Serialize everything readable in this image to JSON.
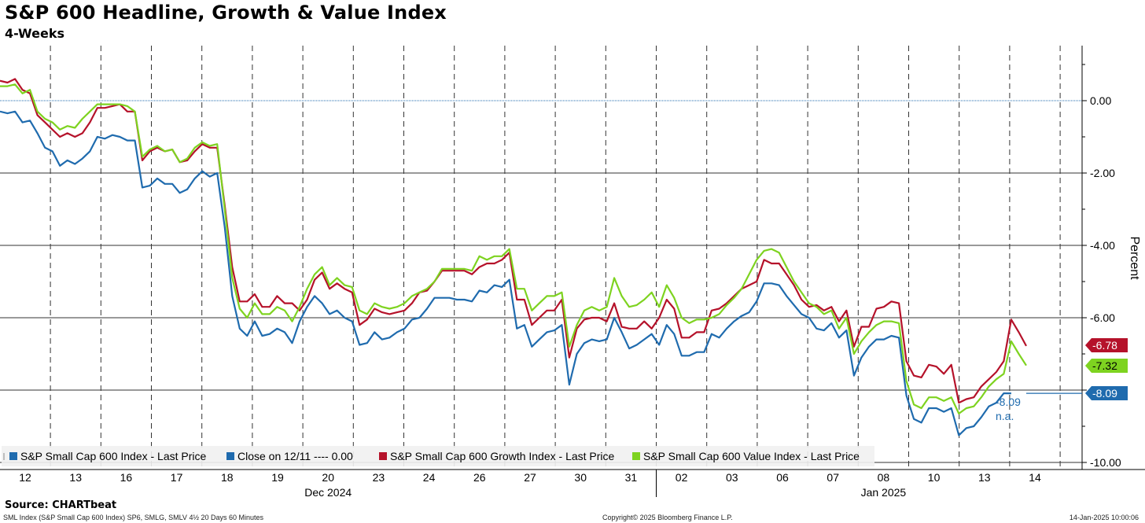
{
  "header": {
    "title": "S&P 600 Headline, Growth & Value Index",
    "subtitle": "4-Weeks"
  },
  "footer": {
    "source": "Source: CHARTbeat",
    "left_note": "SML Index (S&P Small Cap 600 Index) SP6, SMLG, SMLV 4½ 20 Days 60 Minutes",
    "copyright": "Copyright© 2025 Bloomberg Finance L.P.",
    "timestamp": "14-Jan-2025 10:00:06"
  },
  "colors": {
    "headline": "#1f6bae",
    "growth": "#b5122a",
    "value": "#7ed320",
    "reference": "#1f6bae"
  },
  "chart_data": {
    "type": "line",
    "ylabel": "Percent",
    "ylim": [
      -10.3,
      1.5
    ],
    "yticks": [
      0,
      -2,
      -4,
      -6,
      -8,
      -10
    ],
    "ytick_labels": [
      "0.00",
      "-2.00",
      "-4.00",
      "-6.00",
      "-8.00",
      "-10.00"
    ],
    "grid": true,
    "legend_position": "bottom-left",
    "x_day_labels": [
      "12",
      "13",
      "16",
      "17",
      "18",
      "19",
      "20",
      "23",
      "24",
      "26",
      "27",
      "30",
      "31",
      "02",
      "03",
      "06",
      "07",
      "08",
      "10",
      "13",
      "14"
    ],
    "x_month_labels": [
      {
        "label": "Dec 2024",
        "day_index": 6
      },
      {
        "label": "Jan 2025",
        "day_index": 17
      }
    ],
    "reference_line": {
      "name": "Close on 12/11 ---- 0.00",
      "value": 0.0
    },
    "series": [
      {
        "key": "growth",
        "name": "S&P Small Cap 600 Growth Index - Last Price",
        "last_value": -6.78,
        "last_label": "-6.78",
        "values": [
          0.55,
          0.5,
          0.6,
          0.3,
          0.2,
          -0.4,
          -0.6,
          -0.8,
          -1.0,
          -0.9,
          -1.0,
          -0.9,
          -0.6,
          -0.2,
          -0.2,
          -0.15,
          -0.1,
          -0.3,
          -0.3,
          -1.65,
          -1.4,
          -1.3,
          -1.4,
          -1.35,
          -1.7,
          -1.65,
          -1.4,
          -1.2,
          -1.3,
          -1.3,
          -2.9,
          -4.6,
          -5.55,
          -5.55,
          -5.35,
          -5.7,
          -5.7,
          -5.4,
          -5.6,
          -5.6,
          -5.8,
          -5.5,
          -4.95,
          -4.75,
          -5.2,
          -5.05,
          -5.2,
          -5.3,
          -6.2,
          -6.05,
          -5.75,
          -5.85,
          -5.9,
          -5.85,
          -5.8,
          -5.6,
          -5.3,
          -5.25,
          -5.0,
          -4.7,
          -4.7,
          -4.7,
          -4.7,
          -4.8,
          -4.6,
          -4.5,
          -4.5,
          -4.4,
          -4.2,
          -5.5,
          -5.5,
          -6.2,
          -6.0,
          -5.8,
          -5.8,
          -5.5,
          -7.1,
          -6.3,
          -6.05,
          -6.0,
          -6.0,
          -6.1,
          -5.6,
          -6.25,
          -6.3,
          -6.3,
          -6.1,
          -6.3,
          -6.0,
          -5.5,
          -5.75,
          -6.55,
          -6.55,
          -6.4,
          -6.4,
          -5.8,
          -5.75,
          -5.6,
          -5.4,
          -5.2,
          -5.1,
          -5.0,
          -4.4,
          -4.5,
          -4.5,
          -4.8,
          -5.1,
          -5.5,
          -5.7,
          -5.65,
          -5.8,
          -5.7,
          -6.1,
          -5.8,
          -6.8,
          -6.25,
          -6.25,
          -5.75,
          -5.7,
          -5.55,
          -5.6,
          -7.2,
          -7.6,
          -7.65,
          -7.3,
          -7.35,
          -7.55,
          -7.3,
          -8.35,
          -8.25,
          -8.2,
          -7.9,
          -7.7,
          -7.5,
          -7.2,
          -6.05,
          -6.4,
          -6.78
        ]
      },
      {
        "key": "value",
        "name": "S&P Small Cap 600 Value Index - Last Price",
        "last_value": -7.32,
        "last_label": "-7.32",
        "values": [
          0.4,
          0.4,
          0.45,
          0.2,
          0.3,
          -0.3,
          -0.5,
          -0.6,
          -0.8,
          -0.7,
          -0.75,
          -0.5,
          -0.3,
          -0.1,
          -0.1,
          -0.1,
          -0.1,
          -0.15,
          -0.3,
          -1.55,
          -1.35,
          -1.25,
          -1.4,
          -1.35,
          -1.7,
          -1.6,
          -1.3,
          -1.15,
          -1.25,
          -1.2,
          -3.0,
          -4.9,
          -5.75,
          -6.0,
          -5.6,
          -5.9,
          -5.9,
          -5.7,
          -5.8,
          -6.1,
          -5.7,
          -5.2,
          -4.8,
          -4.6,
          -5.1,
          -4.9,
          -5.1,
          -5.15,
          -5.8,
          -5.9,
          -5.6,
          -5.7,
          -5.75,
          -5.7,
          -5.6,
          -5.4,
          -5.3,
          -5.2,
          -5.0,
          -4.65,
          -4.65,
          -4.65,
          -4.65,
          -4.7,
          -4.3,
          -4.4,
          -4.3,
          -4.3,
          -4.1,
          -5.2,
          -5.2,
          -5.8,
          -5.6,
          -5.4,
          -5.4,
          -5.3,
          -6.8,
          -6.2,
          -5.8,
          -5.7,
          -5.8,
          -5.7,
          -4.9,
          -5.4,
          -5.7,
          -5.65,
          -5.5,
          -5.3,
          -5.7,
          -5.1,
          -5.45,
          -6.0,
          -6.15,
          -6.05,
          -6.05,
          -6.0,
          -5.9,
          -5.65,
          -5.45,
          -5.2,
          -4.8,
          -4.4,
          -4.15,
          -4.1,
          -4.2,
          -4.6,
          -5.0,
          -5.3,
          -5.6,
          -5.7,
          -5.9,
          -5.8,
          -6.3,
          -6.0,
          -7.0,
          -6.65,
          -6.4,
          -6.2,
          -6.1,
          -6.1,
          -6.15,
          -7.75,
          -8.4,
          -8.5,
          -8.2,
          -8.2,
          -8.3,
          -8.2,
          -8.65,
          -8.5,
          -8.45,
          -8.2,
          -7.9,
          -7.7,
          -7.55,
          -6.65,
          -7.0,
          -7.32
        ]
      },
      {
        "key": "headline",
        "name": "S&P Small Cap 600 Index - Last Price",
        "last_value": -8.09,
        "last_label": "-8.09",
        "annotation": "-8.09\nn.a.",
        "values": [
          -0.3,
          -0.35,
          -0.3,
          -0.6,
          -0.55,
          -0.9,
          -1.3,
          -1.4,
          -1.8,
          -1.65,
          -1.75,
          -1.6,
          -1.4,
          -1.0,
          -1.05,
          -0.95,
          -1.0,
          -1.1,
          -1.1,
          -2.4,
          -2.35,
          -2.15,
          -2.3,
          -2.3,
          -2.55,
          -2.45,
          -2.15,
          -1.95,
          -2.1,
          -2.0,
          -3.5,
          -5.4,
          -6.3,
          -6.5,
          -6.1,
          -6.5,
          -6.45,
          -6.3,
          -6.4,
          -6.7,
          -6.1,
          -5.7,
          -5.4,
          -5.6,
          -5.9,
          -5.8,
          -6.0,
          -6.1,
          -6.75,
          -6.7,
          -6.4,
          -6.6,
          -6.55,
          -6.4,
          -6.3,
          -6.05,
          -6.0,
          -5.75,
          -5.45,
          -5.45,
          -5.45,
          -5.5,
          -5.5,
          -5.55,
          -5.25,
          -5.3,
          -5.1,
          -5.15,
          -4.95,
          -6.3,
          -6.2,
          -6.8,
          -6.6,
          -6.4,
          -6.35,
          -6.2,
          -7.85,
          -7.0,
          -6.7,
          -6.6,
          -6.65,
          -6.6,
          -6.0,
          -6.4,
          -6.85,
          -6.75,
          -6.6,
          -6.45,
          -6.75,
          -6.2,
          -6.45,
          -7.05,
          -7.05,
          -6.95,
          -6.95,
          -6.45,
          -6.55,
          -6.3,
          -6.1,
          -5.95,
          -5.85,
          -5.55,
          -5.05,
          -5.05,
          -5.1,
          -5.4,
          -5.65,
          -5.9,
          -6.0,
          -6.3,
          -6.35,
          -6.15,
          -6.55,
          -6.35,
          -7.6,
          -7.1,
          -6.8,
          -6.6,
          -6.6,
          -6.5,
          -6.55,
          -8.15,
          -8.8,
          -8.9,
          -8.5,
          -8.5,
          -8.6,
          -8.5,
          -9.25,
          -9.05,
          -9.0,
          -8.75,
          -8.45,
          -8.35,
          -8.09,
          -8.09
        ]
      }
    ]
  }
}
